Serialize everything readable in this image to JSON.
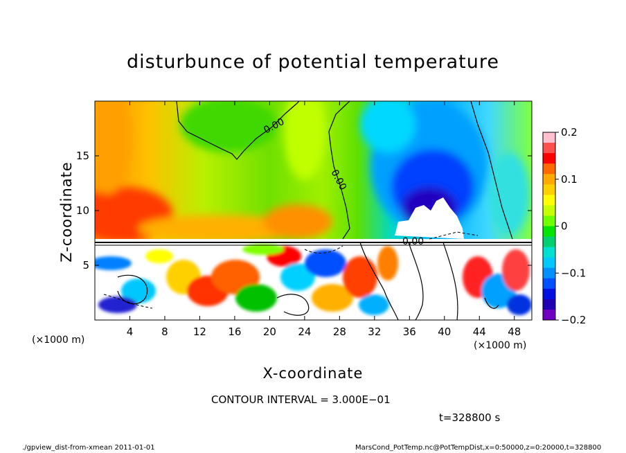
{
  "chart_data": {
    "type": "heatmap",
    "title": "disturbunce of potential temperature",
    "xlabel": "X-coordinate",
    "ylabel": "Z-coordinate",
    "x_unit_label": "(×1000 m)",
    "xlim": [
      0,
      50
    ],
    "ylim": [
      0,
      20
    ],
    "x_ticks": [
      4,
      8,
      12,
      16,
      20,
      24,
      28,
      32,
      36,
      40,
      44,
      48
    ],
    "y_ticks": [
      5,
      10,
      15
    ],
    "colorbar": {
      "range": [
        -0.2,
        0.2
      ],
      "ticks": [
        "0.2",
        "0.1",
        "0",
        "−0.1",
        "−0.2"
      ],
      "colors": [
        "#ffc0d0",
        "#ff5050",
        "#ff0000",
        "#ff6a00",
        "#ffaa00",
        "#ffd000",
        "#ffff00",
        "#c8ff00",
        "#70ff00",
        "#00e600",
        "#00d070",
        "#00e0d0",
        "#00c8ff",
        "#0090ff",
        "#0050ff",
        "#0010e0",
        "#2000b0",
        "#7000c0"
      ]
    },
    "contour_labels": [
      "0.00",
      "0.00",
      "0.00"
    ],
    "grid": false
  },
  "annotations": {
    "contour_interval": "CONTOUR INTERVAL = 3.000E−01",
    "time": "t=328800 s"
  },
  "footer": {
    "left": "./gpview_dist-from-xmean 2011-01-01",
    "right": "MarsCond_PotTemp.nc@PotTempDist,x=0:50000,z=0:20000,t=328800"
  }
}
